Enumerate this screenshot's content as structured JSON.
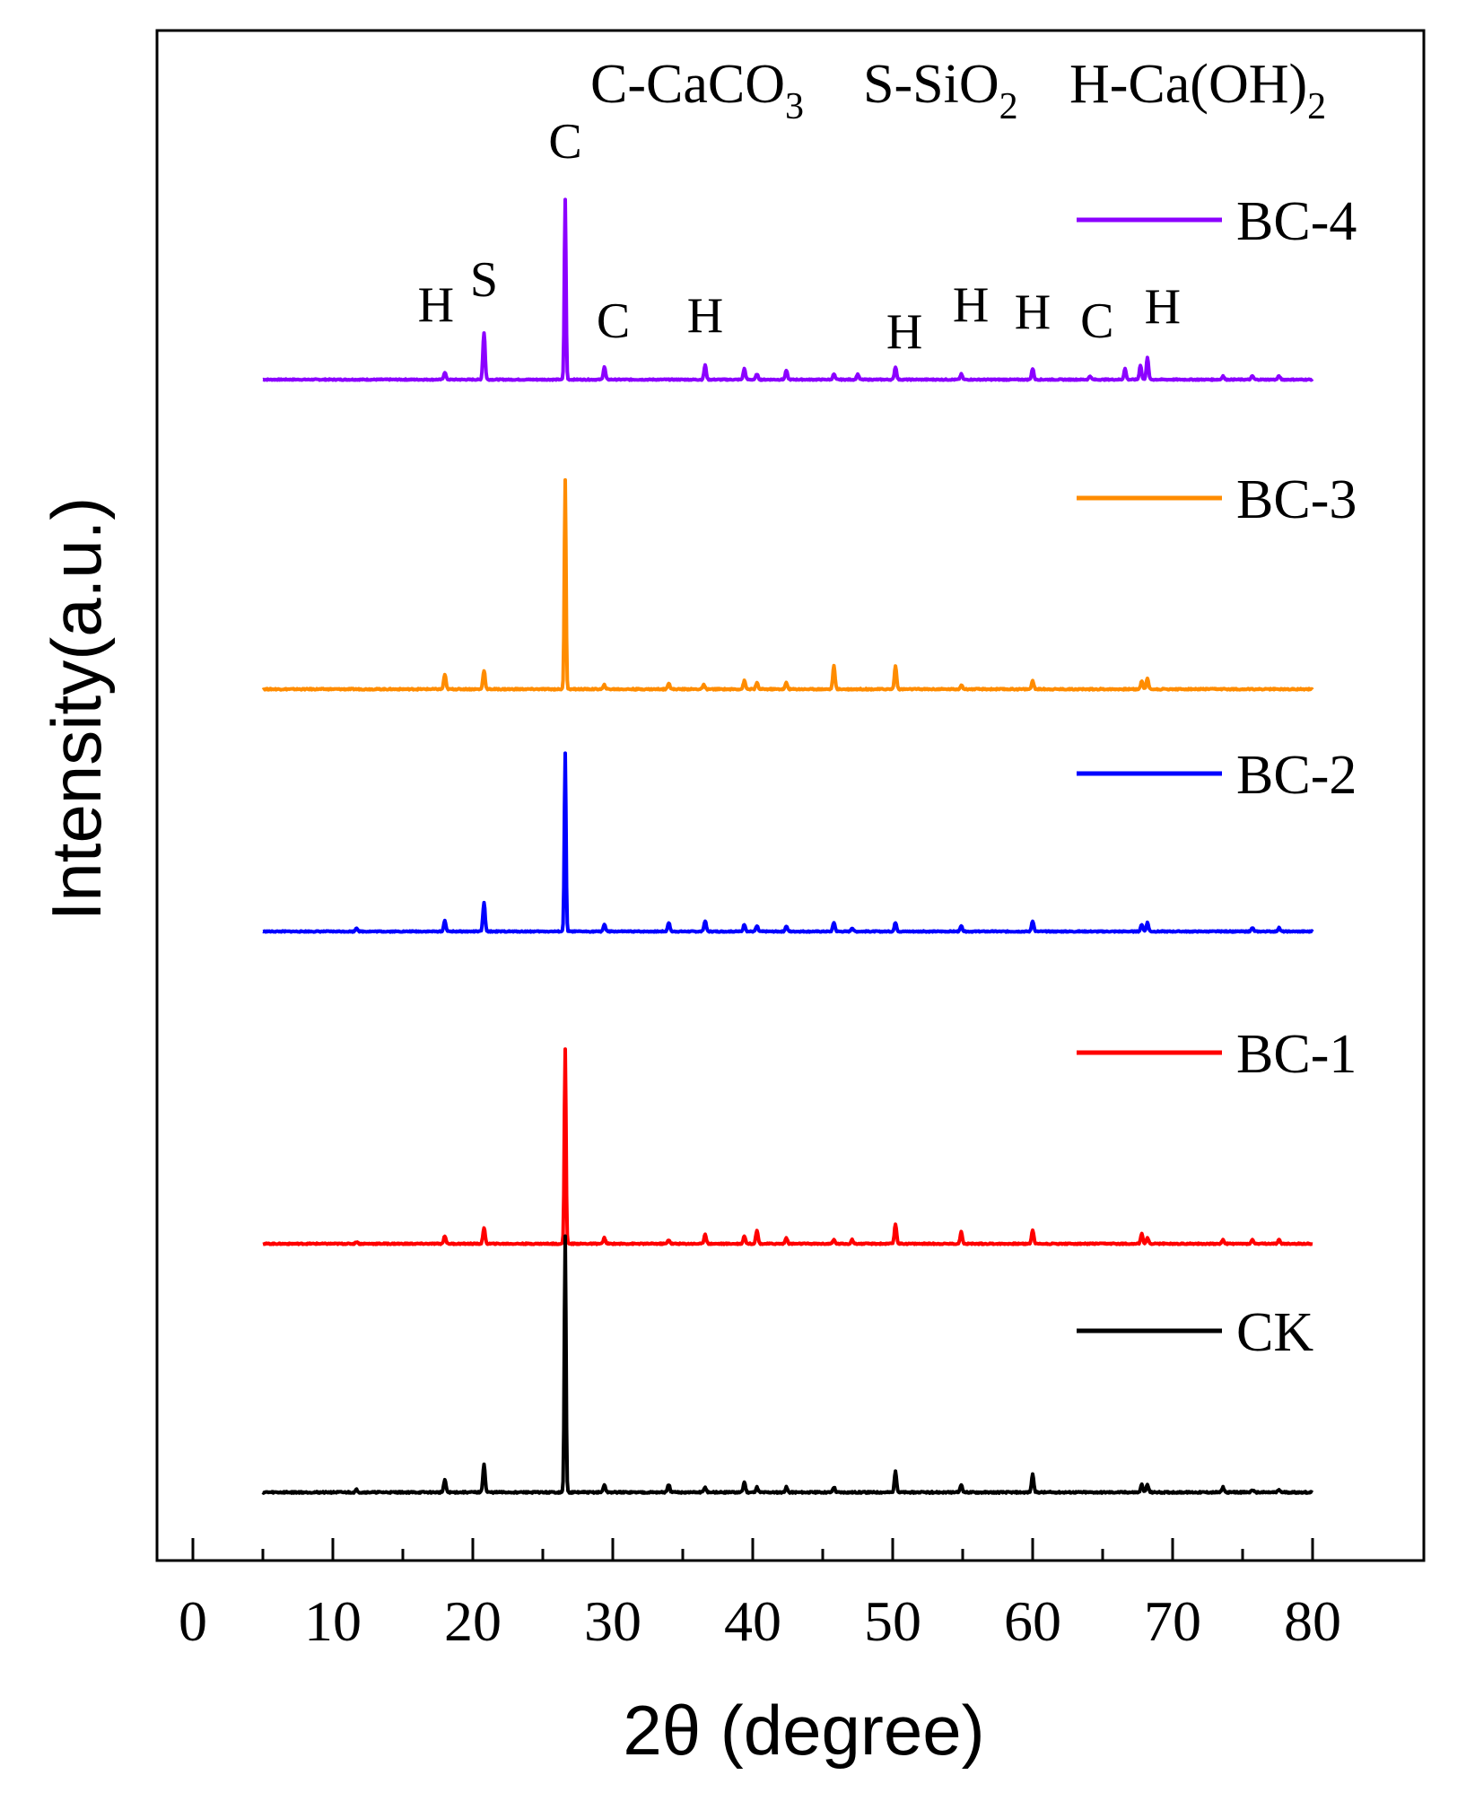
{
  "chart_data": {
    "type": "line",
    "title": "",
    "xlabel": "2θ (degree)",
    "ylabel": "Intensity(a.u.)",
    "xlim": [
      -2.5,
      88
    ],
    "xticks": [
      0,
      10,
      20,
      30,
      40,
      50,
      60,
      70,
      80
    ],
    "x_range_data": [
      5,
      80
    ],
    "grid": false,
    "legend_placement": "right, beside each trace",
    "phase_key": [
      {
        "prefix": "C-CaCO",
        "sub": "3"
      },
      {
        "prefix": "S-SiO",
        "sub": "2"
      },
      {
        "prefix": "H-Ca(OH)",
        "sub": "2"
      }
    ],
    "annotations": [
      {
        "label": "C",
        "x": 26.6
      },
      {
        "label": "H",
        "x": 18.0
      },
      {
        "label": "S",
        "x": 20.8
      },
      {
        "label": "C",
        "x": 29.4
      },
      {
        "label": "H",
        "x": 36.6
      },
      {
        "label": "H",
        "x": 50.2
      },
      {
        "label": "H",
        "x": 54.3
      },
      {
        "label": "H",
        "x": 60.0
      },
      {
        "label": "C",
        "x": 64.6
      },
      {
        "label": "H",
        "x": 68.0
      }
    ],
    "series": [
      {
        "name": "BC-4",
        "color": "#8b00ff",
        "offset": 4,
        "peaks": [
          [
            18.0,
            0.04
          ],
          [
            20.8,
            0.26
          ],
          [
            26.6,
            1.0
          ],
          [
            29.4,
            0.07
          ],
          [
            36.6,
            0.08
          ],
          [
            39.4,
            0.06
          ],
          [
            40.3,
            0.03
          ],
          [
            42.4,
            0.05
          ],
          [
            45.8,
            0.03
          ],
          [
            47.5,
            0.03
          ],
          [
            50.2,
            0.07
          ],
          [
            54.9,
            0.03
          ],
          [
            60.0,
            0.06
          ],
          [
            64.1,
            0.02
          ],
          [
            66.6,
            0.06
          ],
          [
            67.7,
            0.08
          ],
          [
            68.2,
            0.12
          ],
          [
            73.6,
            0.02
          ],
          [
            75.7,
            0.02
          ],
          [
            77.6,
            0.02
          ]
        ]
      },
      {
        "name": "BC-3",
        "color": "#ff8c00",
        "offset": 3,
        "peaks": [
          [
            18.0,
            0.07
          ],
          [
            20.8,
            0.09
          ],
          [
            26.6,
            1.0
          ],
          [
            29.4,
            0.02
          ],
          [
            34.0,
            0.03
          ],
          [
            36.5,
            0.02
          ],
          [
            39.4,
            0.04
          ],
          [
            40.3,
            0.03
          ],
          [
            42.4,
            0.03
          ],
          [
            45.8,
            0.11
          ],
          [
            50.2,
            0.11
          ],
          [
            54.9,
            0.02
          ],
          [
            60.0,
            0.04
          ],
          [
            67.8,
            0.04
          ],
          [
            68.2,
            0.05
          ]
        ]
      },
      {
        "name": "BC-2",
        "color": "#0000ff",
        "offset": 2,
        "peaks": [
          [
            11.7,
            0.02
          ],
          [
            18.0,
            0.06
          ],
          [
            20.8,
            0.16
          ],
          [
            26.6,
            1.0
          ],
          [
            29.4,
            0.04
          ],
          [
            34.0,
            0.05
          ],
          [
            36.6,
            0.06
          ],
          [
            39.4,
            0.04
          ],
          [
            40.3,
            0.03
          ],
          [
            42.4,
            0.03
          ],
          [
            45.8,
            0.05
          ],
          [
            47.1,
            0.02
          ],
          [
            50.2,
            0.05
          ],
          [
            54.9,
            0.03
          ],
          [
            60.0,
            0.06
          ],
          [
            67.8,
            0.04
          ],
          [
            68.2,
            0.05
          ],
          [
            75.7,
            0.02
          ],
          [
            77.6,
            0.02
          ]
        ]
      },
      {
        "name": "BC-1",
        "color": "#ff0000",
        "offset": 1,
        "peaks": [
          [
            11.7,
            0.01
          ],
          [
            18.0,
            0.04
          ],
          [
            20.8,
            0.08
          ],
          [
            26.6,
            1.0
          ],
          [
            29.4,
            0.03
          ],
          [
            34.0,
            0.02
          ],
          [
            36.6,
            0.05
          ],
          [
            39.4,
            0.04
          ],
          [
            40.3,
            0.07
          ],
          [
            42.4,
            0.03
          ],
          [
            45.8,
            0.02
          ],
          [
            47.1,
            0.02
          ],
          [
            50.2,
            0.1
          ],
          [
            54.9,
            0.06
          ],
          [
            60.0,
            0.07
          ],
          [
            67.8,
            0.05
          ],
          [
            68.2,
            0.03
          ],
          [
            73.6,
            0.02
          ],
          [
            75.7,
            0.02
          ],
          [
            77.6,
            0.02
          ]
        ]
      },
      {
        "name": "CK",
        "color": "#000000",
        "offset": 0,
        "peaks": [
          [
            11.7,
            0.01
          ],
          [
            18.0,
            0.05
          ],
          [
            20.8,
            0.11
          ],
          [
            26.6,
            1.0
          ],
          [
            29.4,
            0.03
          ],
          [
            34.0,
            0.03
          ],
          [
            36.6,
            0.02
          ],
          [
            39.4,
            0.04
          ],
          [
            40.3,
            0.02
          ],
          [
            42.4,
            0.02
          ],
          [
            45.8,
            0.02
          ],
          [
            50.2,
            0.08
          ],
          [
            54.9,
            0.03
          ],
          [
            60.0,
            0.07
          ],
          [
            67.8,
            0.03
          ],
          [
            68.2,
            0.03
          ],
          [
            73.6,
            0.02
          ],
          [
            75.7,
            0.01
          ],
          [
            77.6,
            0.01
          ]
        ]
      }
    ]
  }
}
